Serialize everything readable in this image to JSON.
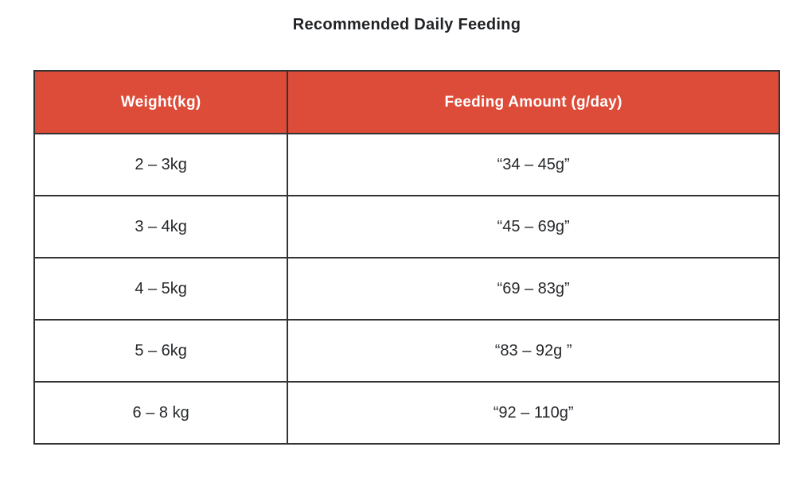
{
  "title": "Recommended Daily Feeding",
  "colors": {
    "header_bg": "#dd4b39",
    "header_text": "#ffffff",
    "border": "#333333",
    "cell_text": "#26282b",
    "title_text": "#1f2124",
    "page_bg": "#ffffff"
  },
  "table": {
    "columns": [
      "Weight(kg)",
      "Feeding Amount (g/day)"
    ],
    "rows": [
      {
        "weight": "2 – 3kg",
        "amount": "“34 – 45g”"
      },
      {
        "weight": "3 – 4kg",
        "amount": "“45 – 69g”"
      },
      {
        "weight": "4 – 5kg",
        "amount": "“69 – 83g”"
      },
      {
        "weight": "5 – 6kg",
        "amount": "“83 – 92g ”"
      },
      {
        "weight": "6 – 8 kg",
        "amount": "“92 – 110g”"
      }
    ]
  },
  "chart_data": {
    "type": "table",
    "title": "Recommended Daily Feeding",
    "columns": [
      "Weight(kg)",
      "Feeding Amount (g/day)"
    ],
    "rows": [
      [
        "2 – 3kg",
        "“34 – 45g”"
      ],
      [
        "3 – 4kg",
        "“45 – 69g”"
      ],
      [
        "4 – 5kg",
        "“69 – 83g”"
      ],
      [
        "5 – 6kg",
        "“83 – 92g ”"
      ],
      [
        "6 – 8 kg",
        "“92 – 110g”"
      ]
    ]
  }
}
